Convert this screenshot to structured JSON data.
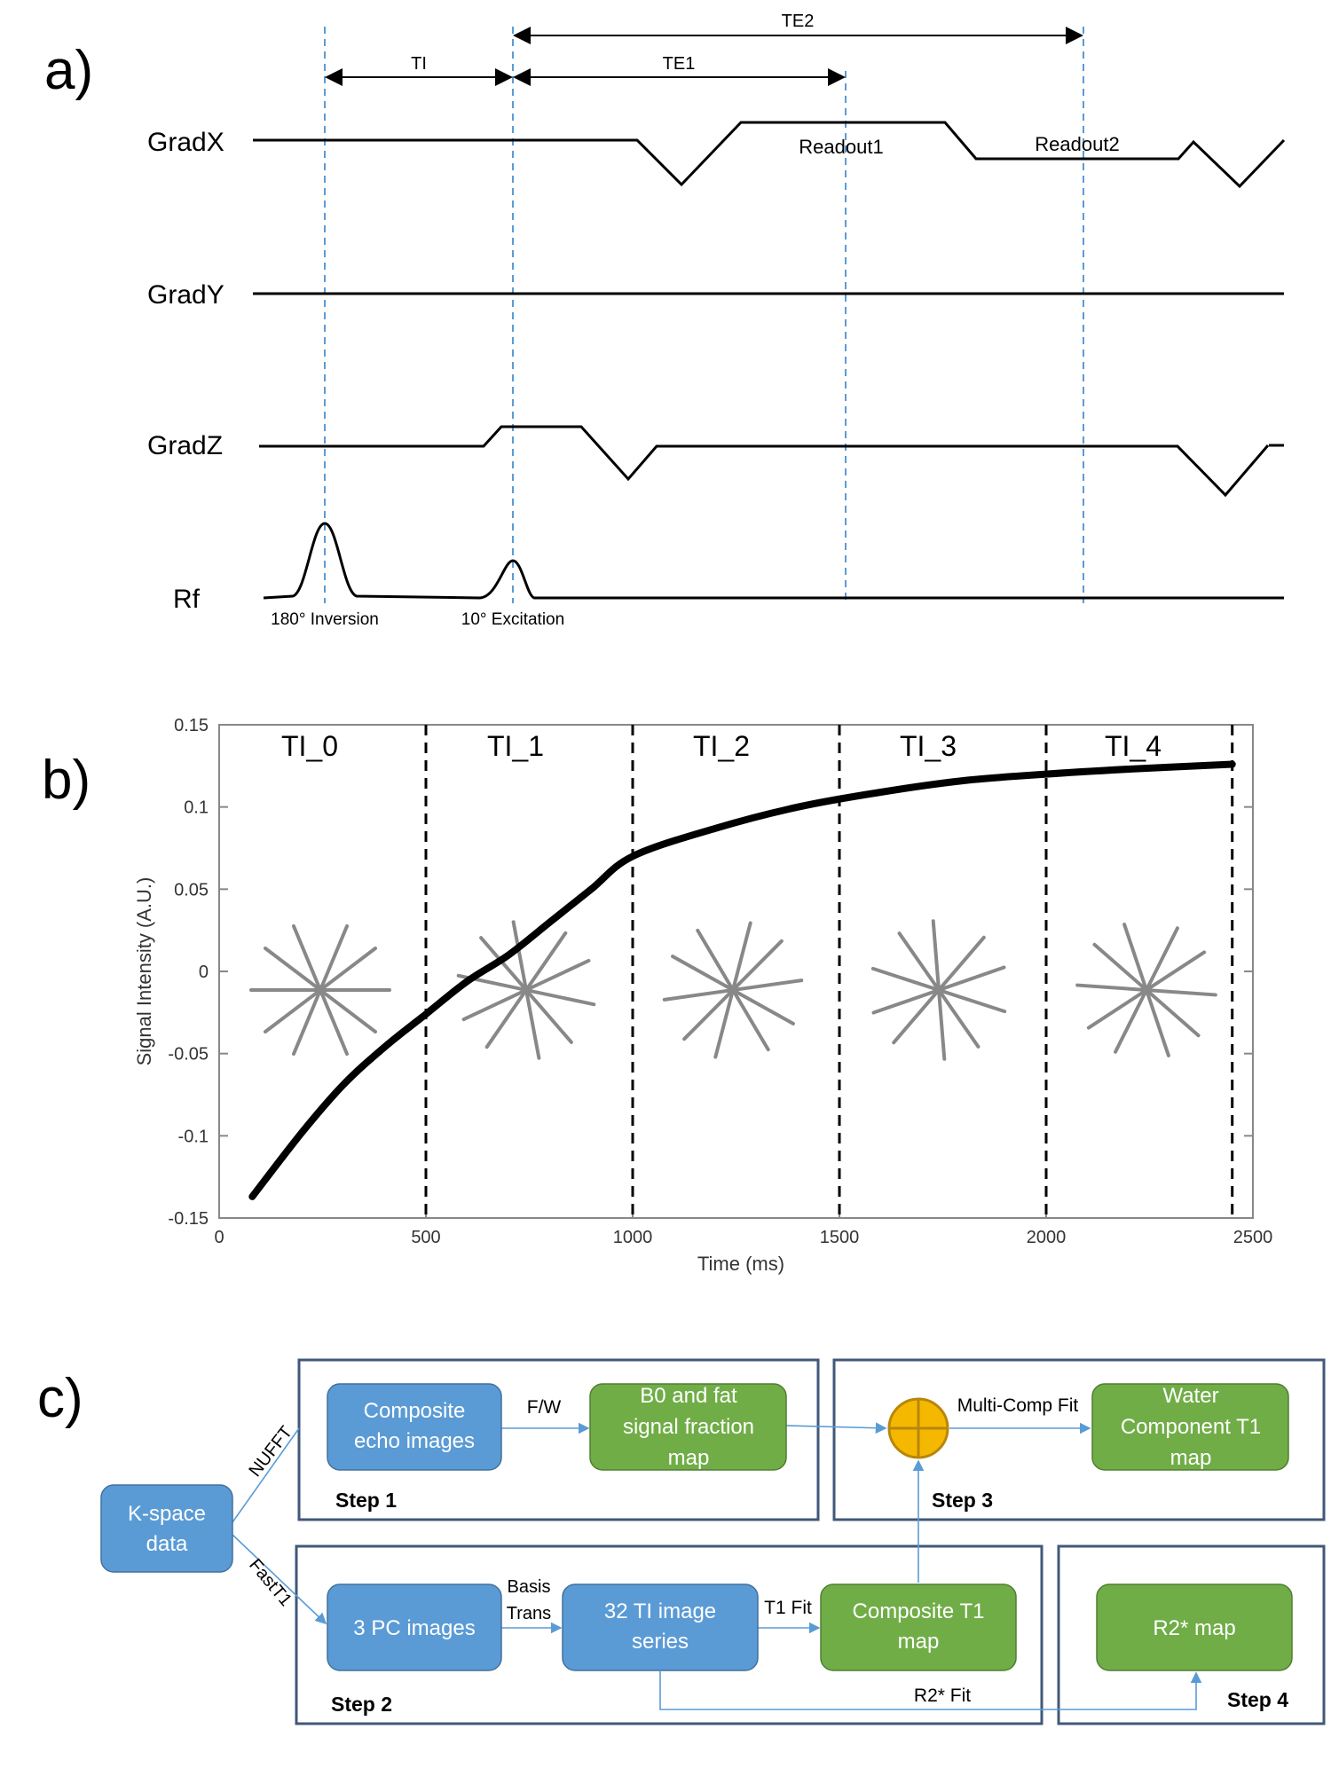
{
  "panel_a": {
    "label": "a)",
    "channels": [
      "GradX",
      "GradY",
      "GradZ",
      "Rf"
    ],
    "intervals": {
      "ti": "TI",
      "te1": "TE1",
      "te2": "TE2"
    },
    "readouts": [
      "Readout1",
      "Readout2"
    ],
    "pulses": {
      "inversion": "180° Inversion",
      "excitation": "10° Excitation"
    }
  },
  "panel_b": {
    "label": "b)",
    "segments": [
      "TI_0",
      "TI_1",
      "TI_2",
      "TI_3",
      "TI_4"
    ]
  },
  "chart_data": {
    "type": "line",
    "title": "",
    "xlabel": "Time (ms)",
    "ylabel": "Signal Intensity (A.U.)",
    "xlim": [
      0,
      2500
    ],
    "ylim": [
      -0.15,
      0.15
    ],
    "xticks": [
      0,
      500,
      1000,
      1500,
      2000,
      2500
    ],
    "yticks": [
      -0.15,
      -0.1,
      -0.05,
      0,
      0.05,
      0.1,
      0.15
    ],
    "ytick_labels": [
      "-0.15",
      "-0.1",
      "-0.05",
      "0",
      "0.05",
      "0.1",
      "0.15"
    ],
    "segment_boundaries": [
      500,
      1000,
      1500,
      2000,
      2450
    ],
    "series": [
      {
        "name": "Signal",
        "x": [
          80,
          200,
          300,
          400,
          500,
          600,
          700,
          800,
          900,
          1000,
          1200,
          1400,
          1600,
          1800,
          2000,
          2200,
          2450
        ],
        "y": [
          -0.137,
          -0.098,
          -0.069,
          -0.046,
          -0.026,
          -0.006,
          0.01,
          0.03,
          0.05,
          0.07,
          0.087,
          0.1,
          0.109,
          0.116,
          0.12,
          0.123,
          0.126
        ]
      }
    ]
  },
  "panel_c": {
    "label": "c)",
    "nodes": {
      "kspace": [
        "K-space",
        "data"
      ],
      "composite_echo": [
        "Composite",
        "echo images"
      ],
      "b0_fat": [
        "B0 and fat",
        "signal fraction",
        "map"
      ],
      "water_t1": [
        "Water",
        "Component T1",
        "map"
      ],
      "pc_images": [
        "3 PC images"
      ],
      "ti_series": [
        "32 TI image",
        "series"
      ],
      "composite_t1": [
        "Composite T1",
        "map"
      ],
      "r2_map": [
        "R2* map"
      ]
    },
    "edges": {
      "nufft": "NUFFT",
      "fastt1": "FastT1",
      "fw": "F/W",
      "multicomp": "Multi-Comp Fit",
      "basis1": "Basis",
      "basis2": "Trans",
      "t1fit": "T1 Fit",
      "r2fit": "R2* Fit"
    },
    "steps": [
      "Step 1",
      "Step 2",
      "Step 3",
      "Step 4"
    ]
  },
  "colors": {
    "blue_box": "#5b9bd5",
    "green_box": "#70ad47",
    "frame": "#41587a",
    "sum_node": "#f5b800"
  }
}
